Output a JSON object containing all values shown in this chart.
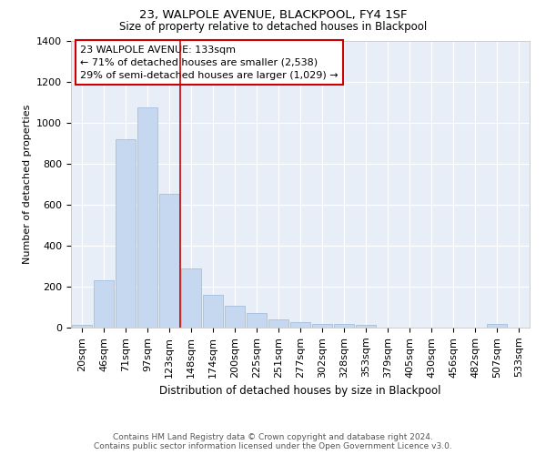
{
  "title1": "23, WALPOLE AVENUE, BLACKPOOL, FY4 1SF",
  "title2": "Size of property relative to detached houses in Blackpool",
  "xlabel": "Distribution of detached houses by size in Blackpool",
  "ylabel": "Number of detached properties",
  "annotation_line1": "23 WALPOLE AVENUE: 133sqm",
  "annotation_line2": "← 71% of detached houses are smaller (2,538)",
  "annotation_line3": "29% of semi-detached houses are larger (1,029) →",
  "footer1": "Contains HM Land Registry data © Crown copyright and database right 2024.",
  "footer2": "Contains public sector information licensed under the Open Government Licence v3.0.",
  "categories": [
    "20sqm",
    "46sqm",
    "71sqm",
    "97sqm",
    "123sqm",
    "148sqm",
    "174sqm",
    "200sqm",
    "225sqm",
    "251sqm",
    "277sqm",
    "302sqm",
    "328sqm",
    "353sqm",
    "379sqm",
    "405sqm",
    "430sqm",
    "456sqm",
    "482sqm",
    "507sqm",
    "533sqm"
  ],
  "values": [
    15,
    230,
    920,
    1075,
    655,
    290,
    158,
    105,
    70,
    42,
    25,
    20,
    18,
    15,
    0,
    0,
    0,
    0,
    0,
    20,
    0
  ],
  "bar_color": "#c5d8f0",
  "bar_edge_color": "#9ab8db",
  "bg_color": "#e8eef8",
  "grid_color": "#ffffff",
  "vline_color": "#cc0000",
  "vline_x": 4.5,
  "annotation_box_color": "#cc0000",
  "ylim": [
    0,
    1400
  ],
  "yticks": [
    0,
    200,
    400,
    600,
    800,
    1000,
    1200,
    1400
  ],
  "title1_fontsize": 9.5,
  "title2_fontsize": 8.5,
  "xlabel_fontsize": 8.5,
  "ylabel_fontsize": 8,
  "tick_fontsize": 8,
  "ann_fontsize": 8,
  "footer_fontsize": 6.5
}
